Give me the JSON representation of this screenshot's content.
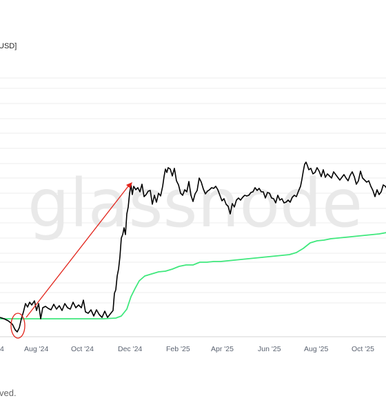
{
  "header": {
    "unit_label": "USD]"
  },
  "watermark": {
    "text": "glassnode"
  },
  "footer": {
    "note": "ved."
  },
  "colors": {
    "price": "#000000",
    "cost_basis": "#3ee87c",
    "annotation": "#e2231a",
    "grid": "#ececec",
    "tick_text": "#5a6270"
  },
  "chart_data": {
    "type": "line",
    "title": "",
    "xlabel": "",
    "ylabel": "",
    "x_ticks": [
      "4",
      "Aug '24",
      "Oct '24",
      "Dec '24",
      "Feb '25",
      "Apr '25",
      "Jun '25",
      "Aug '25",
      "Oct '25"
    ],
    "grid": "horizontal",
    "legend": "none",
    "series": [
      {
        "values": [
          [
            0,
            460
          ],
          [
            6,
            462
          ],
          [
            12,
            465
          ],
          [
            18,
            470
          ],
          [
            22,
            478
          ],
          [
            25,
            481
          ],
          [
            28,
            475
          ],
          [
            31,
            462
          ],
          [
            34,
            452
          ],
          [
            37,
            440
          ],
          [
            40,
            445
          ],
          [
            43,
            438
          ],
          [
            46,
            442
          ],
          [
            50,
            436
          ],
          [
            53,
            450
          ],
          [
            56,
            440
          ],
          [
            59,
            462
          ],
          [
            62,
            446
          ],
          [
            66,
            444
          ],
          [
            70,
            447
          ],
          [
            74,
            449
          ],
          [
            78,
            441
          ],
          [
            82,
            448
          ],
          [
            86,
            443
          ],
          [
            90,
            450
          ],
          [
            94,
            440
          ],
          [
            98,
            446
          ],
          [
            102,
            448
          ],
          [
            106,
            438
          ],
          [
            110,
            446
          ],
          [
            114,
            442
          ],
          [
            118,
            446
          ],
          [
            121,
            435
          ],
          [
            124,
            452
          ],
          [
            128,
            454
          ],
          [
            132,
            449
          ],
          [
            136,
            458
          ],
          [
            140,
            449
          ],
          [
            144,
            456
          ],
          [
            148,
            460
          ],
          [
            152,
            451
          ],
          [
            156,
            460
          ],
          [
            160,
            455
          ],
          [
            164,
            450
          ],
          [
            166,
            425
          ],
          [
            168,
            420
          ],
          [
            170,
            400
          ],
          [
            172,
            390
          ],
          [
            174,
            372
          ],
          [
            176,
            345
          ],
          [
            178,
            340
          ],
          [
            180,
            330
          ],
          [
            182,
            340
          ],
          [
            184,
            310
          ],
          [
            186,
            300
          ],
          [
            188,
            280
          ],
          [
            190,
            268
          ],
          [
            192,
            282
          ],
          [
            194,
            270
          ],
          [
            197,
            275
          ],
          [
            200,
            272
          ],
          [
            203,
            278
          ],
          [
            206,
            267
          ],
          [
            209,
            285
          ],
          [
            212,
            282
          ],
          [
            215,
            277
          ],
          [
            218,
            276
          ],
          [
            221,
            296
          ],
          [
            224,
            283
          ],
          [
            227,
            293
          ],
          [
            230,
            280
          ],
          [
            233,
            284
          ],
          [
            236,
            270
          ],
          [
            238,
            256
          ],
          [
            240,
            245
          ],
          [
            242,
            250
          ],
          [
            244,
            243
          ],
          [
            247,
            245
          ],
          [
            250,
            255
          ],
          [
            253,
            244
          ],
          [
            256,
            262
          ],
          [
            259,
            268
          ],
          [
            262,
            280
          ],
          [
            265,
            283
          ],
          [
            268,
            275
          ],
          [
            271,
            278
          ],
          [
            274,
            263
          ],
          [
            277,
            283
          ],
          [
            280,
            292
          ],
          [
            283,
            281
          ],
          [
            286,
            276
          ],
          [
            289,
            258
          ],
          [
            292,
            264
          ],
          [
            295,
            274
          ],
          [
            298,
            281
          ],
          [
            301,
            277
          ],
          [
            304,
            275
          ],
          [
            307,
            272
          ],
          [
            310,
            273
          ],
          [
            313,
            270
          ],
          [
            316,
            275
          ],
          [
            319,
            283
          ],
          [
            322,
            291
          ],
          [
            325,
            288
          ],
          [
            328,
            296
          ],
          [
            331,
            299
          ],
          [
            334,
            310
          ],
          [
            337,
            295
          ],
          [
            340,
            300
          ],
          [
            343,
            290
          ],
          [
            346,
            287
          ],
          [
            349,
            290
          ],
          [
            352,
            286
          ],
          [
            355,
            283
          ],
          [
            358,
            284
          ],
          [
            361,
            283
          ],
          [
            364,
            279
          ],
          [
            367,
            278
          ],
          [
            370,
            272
          ],
          [
            373,
            276
          ],
          [
            376,
            273
          ],
          [
            379,
            278
          ],
          [
            382,
            278
          ],
          [
            385,
            287
          ],
          [
            388,
            279
          ],
          [
            391,
            280
          ],
          [
            394,
            287
          ],
          [
            397,
            288
          ],
          [
            400,
            294
          ],
          [
            403,
            283
          ],
          [
            406,
            290
          ],
          [
            409,
            288
          ],
          [
            412,
            294
          ],
          [
            415,
            293
          ],
          [
            418,
            290
          ],
          [
            421,
            293
          ],
          [
            424,
            286
          ],
          [
            427,
            283
          ],
          [
            430,
            285
          ],
          [
            433,
            277
          ],
          [
            436,
            270
          ],
          [
            438,
            260
          ],
          [
            440,
            248
          ],
          [
            442,
            238
          ],
          [
            444,
            235
          ],
          [
            446,
            240
          ],
          [
            448,
            246
          ],
          [
            451,
            244
          ],
          [
            454,
            252
          ],
          [
            457,
            250
          ],
          [
            460,
            243
          ],
          [
            463,
            248
          ],
          [
            466,
            256
          ],
          [
            469,
            246
          ],
          [
            472,
            257
          ],
          [
            475,
            252
          ],
          [
            478,
            255
          ],
          [
            481,
            258
          ],
          [
            484,
            249
          ],
          [
            487,
            253
          ],
          [
            490,
            257
          ],
          [
            493,
            261
          ],
          [
            496,
            257
          ],
          [
            499,
            253
          ],
          [
            502,
            258
          ],
          [
            505,
            262
          ],
          [
            508,
            254
          ],
          [
            511,
            249
          ],
          [
            514,
            256
          ],
          [
            517,
            267
          ],
          [
            520,
            262
          ],
          [
            523,
            248
          ],
          [
            526,
            258
          ],
          [
            529,
            261
          ],
          [
            532,
            264
          ],
          [
            535,
            262
          ],
          [
            538,
            270
          ],
          [
            541,
            276
          ],
          [
            544,
            285
          ],
          [
            547,
            275
          ],
          [
            550,
            282
          ],
          [
            553,
            278
          ],
          [
            556,
            268
          ],
          [
            559,
            270
          ],
          [
            561,
            273
          ]
        ]
      },
      {
        "values": [
          [
            0,
            462
          ],
          [
            30,
            462
          ],
          [
            60,
            462
          ],
          [
            90,
            462
          ],
          [
            120,
            462
          ],
          [
            150,
            462
          ],
          [
            168,
            461
          ],
          [
            176,
            458
          ],
          [
            184,
            448
          ],
          [
            190,
            430
          ],
          [
            196,
            418
          ],
          [
            202,
            407
          ],
          [
            210,
            400
          ],
          [
            220,
            397
          ],
          [
            230,
            394
          ],
          [
            240,
            393
          ],
          [
            250,
            390
          ],
          [
            260,
            386
          ],
          [
            270,
            384
          ],
          [
            280,
            384
          ],
          [
            290,
            380
          ],
          [
            300,
            380
          ],
          [
            310,
            379
          ],
          [
            320,
            379
          ],
          [
            330,
            378
          ],
          [
            340,
            377
          ],
          [
            350,
            376
          ],
          [
            360,
            375
          ],
          [
            370,
            374
          ],
          [
            380,
            373
          ],
          [
            390,
            372
          ],
          [
            400,
            371
          ],
          [
            410,
            370
          ],
          [
            420,
            369
          ],
          [
            430,
            366
          ],
          [
            440,
            360
          ],
          [
            450,
            352
          ],
          [
            460,
            349
          ],
          [
            470,
            348
          ],
          [
            480,
            346
          ],
          [
            490,
            345
          ],
          [
            500,
            344
          ],
          [
            510,
            343
          ],
          [
            520,
            342
          ],
          [
            530,
            341
          ],
          [
            540,
            340
          ],
          [
            550,
            339
          ],
          [
            561,
            337
          ]
        ]
      }
    ]
  }
}
